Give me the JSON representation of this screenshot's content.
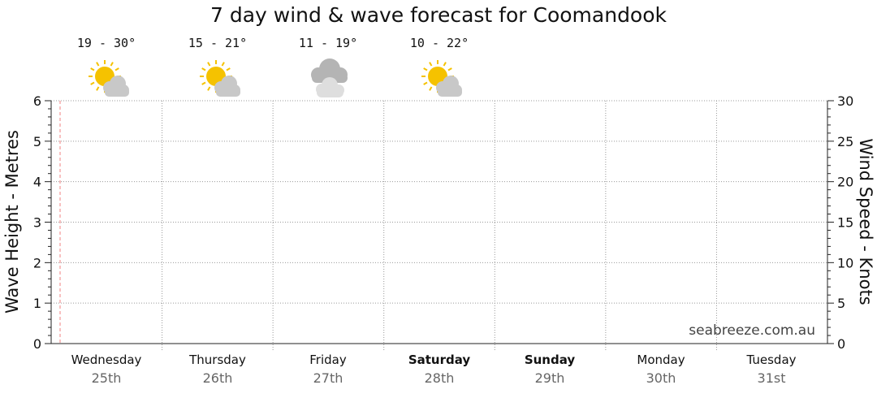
{
  "title": "7 day wind & wave forecast for Coomandook",
  "watermark": "seabreeze.com.au",
  "chart_data": {
    "type": "line",
    "title": "7 day wind & wave forecast for Coomandook",
    "ylabel": "Wave Height - Metres",
    "y2label": "Wind Speed - Knots",
    "ylim": [
      0,
      6
    ],
    "y2lim": [
      0,
      30
    ],
    "yticks": [
      "0",
      "1",
      "2",
      "3",
      "4",
      "5",
      "6"
    ],
    "y2ticks": [
      "0",
      "5",
      "10",
      "15",
      "20",
      "25",
      "30"
    ],
    "grid": true,
    "series": [],
    "days": [
      {
        "name": "Wednesday",
        "date": "25th",
        "weekend": false,
        "temp": "19 - 30°",
        "icon": "partly-cloudy-icon"
      },
      {
        "name": "Thursday",
        "date": "26th",
        "weekend": false,
        "temp": "15 - 21°",
        "icon": "partly-cloudy-icon"
      },
      {
        "name": "Friday",
        "date": "27th",
        "weekend": false,
        "temp": "11 - 19°",
        "icon": "cloudy-icon"
      },
      {
        "name": "Saturday",
        "date": "28th",
        "weekend": true,
        "temp": "10 - 22°",
        "icon": "partly-cloudy-icon"
      },
      {
        "name": "Sunday",
        "date": "29th",
        "weekend": true,
        "temp": "",
        "icon": ""
      },
      {
        "name": "Monday",
        "date": "30th",
        "weekend": false,
        "temp": "",
        "icon": ""
      },
      {
        "name": "Tuesday",
        "date": "31st",
        "weekend": false,
        "temp": "",
        "icon": ""
      }
    ],
    "current_time_marker": true
  },
  "colors": {
    "grid": "#999999",
    "axis": "#222222",
    "now_marker": "#f08080",
    "sun": "#f5c200",
    "cloud": "#c8c8c8",
    "cloud_dark": "#b4b4b4"
  }
}
